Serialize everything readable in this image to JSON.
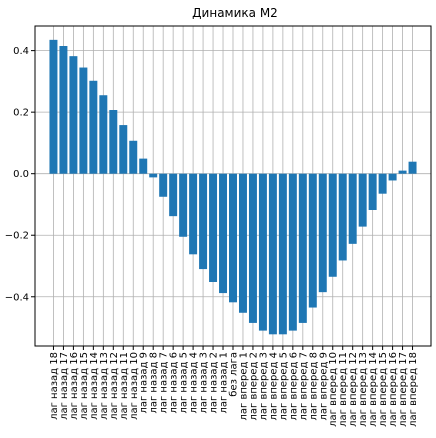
{
  "chart_data": {
    "type": "bar",
    "title": "Динамика М2",
    "xlabel": "",
    "ylabel": "",
    "ylim": [
      -0.56,
      0.48
    ],
    "yticks": [
      0.4,
      0.2,
      0.0,
      -0.2,
      -0.4
    ],
    "ytick_labels": [
      "0.4",
      "0.2",
      "0.0",
      "−0.2",
      "−0.4"
    ],
    "grid": true,
    "bar_color": "#1f77b4",
    "categories": [
      "лаг назад 18",
      "лаг назад 17",
      "лаг назад 16",
      "лаг назад 15",
      "лаг назад 14",
      "лаг назад 13",
      "лаг назад 12",
      "лаг назад 11",
      "лаг назад 10",
      "лаг назад 9",
      "лаг назад 8",
      "лаг назад 7",
      "лаг назад 6",
      "лаг назад 5",
      "лаг назад 4",
      "лаг назад 3",
      "лаг назад 2",
      "лаг назад 1",
      "без лага",
      "лаг вперед 1",
      "лаг вперед 2",
      "лаг вперед 3",
      "лаг вперед 4",
      "лаг вперед 5",
      "лаг вперед 6",
      "лаг вперед 7",
      "лаг вперед 8",
      "лаг вперед 9",
      "лаг вперед 10",
      "лаг вперед 11",
      "лаг вперед 12",
      "лаг вперед 13",
      "лаг вперед 14",
      "лаг вперед 15",
      "лаг вперед 16",
      "лаг вперед 17",
      "лаг вперед 18"
    ],
    "values": [
      0.435,
      0.415,
      0.382,
      0.345,
      0.302,
      0.255,
      0.207,
      0.158,
      0.107,
      0.049,
      -0.012,
      -0.075,
      -0.138,
      -0.205,
      -0.262,
      -0.31,
      -0.352,
      -0.388,
      -0.418,
      -0.452,
      -0.485,
      -0.51,
      -0.522,
      -0.522,
      -0.51,
      -0.485,
      -0.435,
      -0.385,
      -0.335,
      -0.282,
      -0.228,
      -0.172,
      -0.118,
      -0.065,
      -0.022,
      0.01,
      0.039
    ]
  }
}
